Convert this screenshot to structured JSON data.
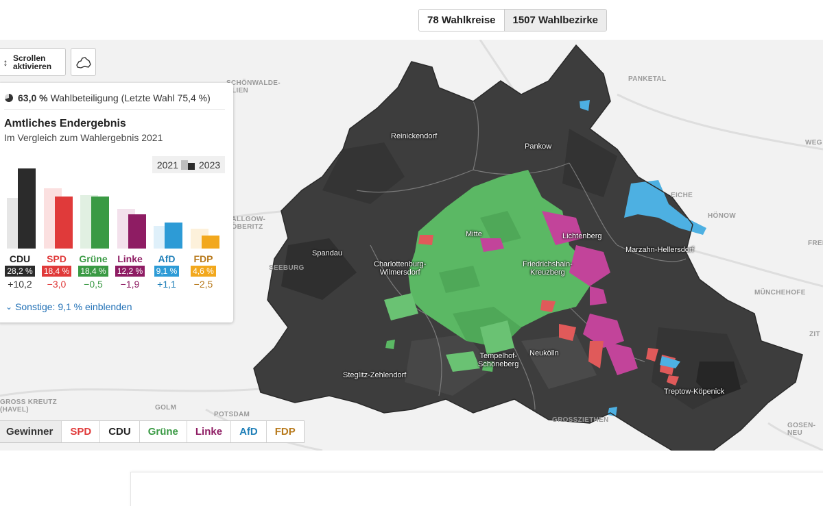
{
  "view_toggle": [
    {
      "label": "78 Wahlkreise",
      "active": false
    },
    {
      "label": "1507 Wahlbezirke",
      "active": true
    }
  ],
  "controls": {
    "scroll_label": "Scrollen\naktivieren",
    "shape_icon": "berlin-outline-icon"
  },
  "panel": {
    "turnout_value": "63,0 %",
    "turnout_text": "Wahlbeteiligung (Letzte Wahl 75,4 %)",
    "title": "Amtliches Endergebnis",
    "subtitle": "Im Vergleich zum Wahlergebnis 2021",
    "legend_old": "2021",
    "legend_new": "2023",
    "others_link": "Sonstige: 9,1 % einblenden",
    "parties": [
      {
        "name": "CDU",
        "value": "28,2 %",
        "diff": "+10,2",
        "pct": 28.2,
        "prev": 18.0,
        "color": "#2b2b2b",
        "light": "#e6e6e6",
        "name_color": "#222222",
        "diff_color": "#333333"
      },
      {
        "name": "SPD",
        "value": "18,4 %",
        "diff": "−3,0",
        "pct": 18.4,
        "prev": 21.4,
        "color": "#e03a3a",
        "light": "#fbe0e0",
        "name_color": "#e03a3a",
        "diff_color": "#e03a3a"
      },
      {
        "name": "Grüne",
        "value": "18,4 %",
        "diff": "−0,5",
        "pct": 18.4,
        "prev": 18.9,
        "color": "#3a9a44",
        "light": "#e1f0e2",
        "name_color": "#3a9a44",
        "diff_color": "#3a9a44"
      },
      {
        "name": "Linke",
        "value": "12,2 %",
        "diff": "−1,9",
        "pct": 12.2,
        "prev": 14.1,
        "color": "#8e1c63",
        "light": "#f3e1ec",
        "name_color": "#8e1c63",
        "diff_color": "#8e1c63"
      },
      {
        "name": "AfD",
        "value": "9,1 %",
        "diff": "+1,1",
        "pct": 9.1,
        "prev": 8.0,
        "color": "#2d9bd6",
        "light": "#dff0fa",
        "name_color": "#1f7fb8",
        "diff_color": "#1f7fb8"
      },
      {
        "name": "FDP",
        "value": "4,6 %",
        "diff": "−2,5",
        "pct": 4.6,
        "prev": 7.1,
        "color": "#f2a81d",
        "light": "#fdf1db",
        "name_color": "#b7791b",
        "diff_color": "#b7791b"
      }
    ]
  },
  "map": {
    "places": [
      "SCHÖNWALDE-\nGLIEN",
      "PANKETAL",
      "EICHE",
      "HÖNOW",
      "DALLGOW-\nDÖBERITZ",
      "SEEBURG",
      "MÜNCHEHOFE",
      "GROSS KREUTZ\n(HAVEL)",
      "GOLM",
      "POTSDAM",
      "GROSSZIETHEN",
      "GOSEN-NEU",
      "WEG",
      "FRED",
      "ZIT"
    ],
    "districts": [
      "Reinickendorf",
      "Pankow",
      "Mitte",
      "Lichtenberg",
      "Spandau",
      "Charlottenburg-\nWilmersdorf",
      "Friedrichshain-\nKreuzberg",
      "Marzahn-Hellersdorf",
      "Tempelhof-\nSchöneberg",
      "Neukölln",
      "Steglitz-Zehlendorf",
      "Treptow-Köpenick"
    ]
  },
  "filter_tabs": [
    {
      "label": "Gewinner",
      "color": "#333333"
    },
    {
      "label": "SPD",
      "color": "#e03a3a"
    },
    {
      "label": "CDU",
      "color": "#222222"
    },
    {
      "label": "Grüne",
      "color": "#3a9a44"
    },
    {
      "label": "Linke",
      "color": "#8e1c63"
    },
    {
      "label": "AfD",
      "color": "#1f7fb8"
    },
    {
      "label": "FDP",
      "color": "#b7791b"
    }
  ]
}
